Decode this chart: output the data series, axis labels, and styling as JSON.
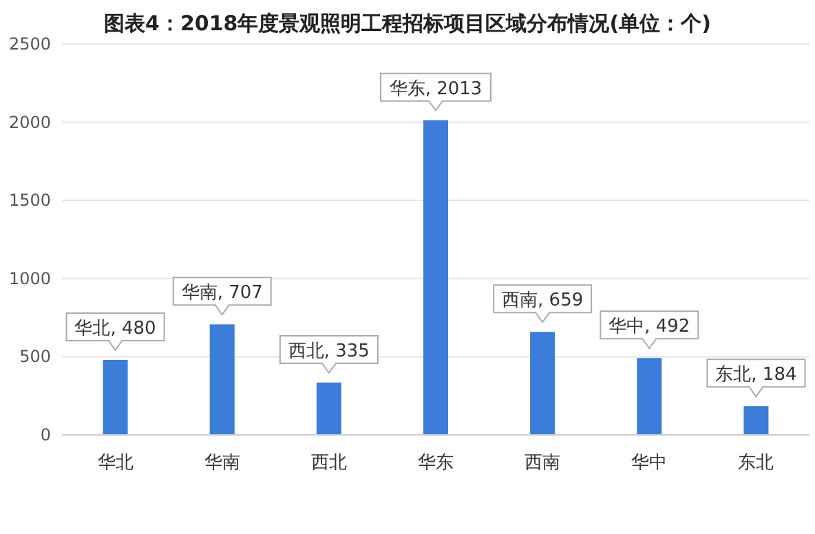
{
  "chart_data": {
    "type": "bar",
    "title": "图表4：2018年度景观照明工程招标项目区域分布情况(单位：个)",
    "categories": [
      "华北",
      "华南",
      "西北",
      "华东",
      "西南",
      "华中",
      "东北"
    ],
    "values": [
      480,
      707,
      335,
      2013,
      659,
      492,
      184
    ],
    "value_labels": [
      "华北, 480",
      "华南, 707",
      "西北, 335",
      "华东, 2013",
      "西南, 659",
      "华中, 492",
      "东北, 184"
    ],
    "color": "#3b7dd8",
    "ylim": [
      0,
      2500
    ],
    "yticks": [
      0,
      500,
      1000,
      1500,
      2000,
      2500
    ],
    "grid": "y"
  }
}
